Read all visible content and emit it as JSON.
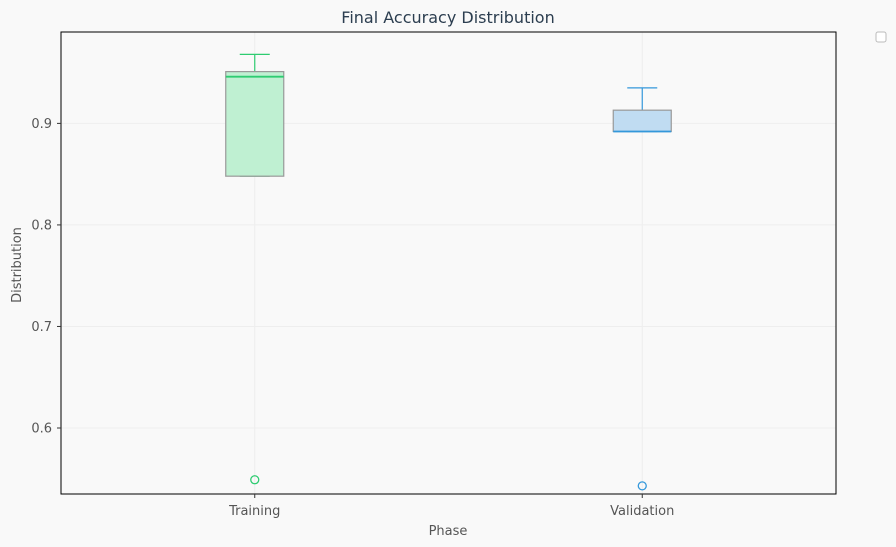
{
  "chart_data": {
    "type": "box",
    "title": "Final Accuracy Distribution",
    "xlabel": "Phase",
    "ylabel": "Distribution",
    "ylim": [
      0.535,
      0.99
    ],
    "yticks": [
      0.6,
      0.7,
      0.8,
      0.9
    ],
    "grid": true,
    "legend": "top-right, empty",
    "categories": [
      "Training",
      "Validation"
    ],
    "boxes": [
      {
        "category": "Training",
        "whisker_low": 0.848,
        "q1": 0.848,
        "median": 0.946,
        "q3": 0.951,
        "whisker_high": 0.968,
        "outliers": [
          0.549
        ],
        "color": "#2ecc71",
        "fill": "#bff0d2"
      },
      {
        "category": "Validation",
        "whisker_low": 0.892,
        "q1": 0.892,
        "median": 0.892,
        "q3": 0.913,
        "whisker_high": 0.935,
        "outliers": [
          0.543
        ],
        "color": "#3498db",
        "fill": "#c0dcf2"
      }
    ]
  }
}
